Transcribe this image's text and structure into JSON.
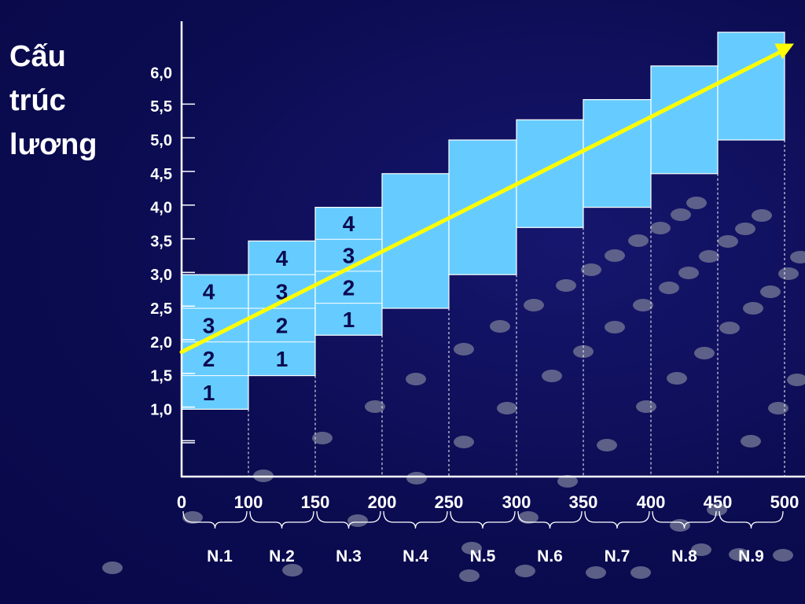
{
  "title_lines": [
    "Cấu",
    "trúc",
    "lương"
  ],
  "colors": {
    "background": "#0d0d55",
    "box_fill": "#66ccff",
    "box_stroke": "#ffffff",
    "trend_line": "#ffff00",
    "axis": "#ffffff",
    "level_text": "#0b0b50"
  },
  "chart_data": {
    "type": "bar",
    "title": "Cấu trúc lương",
    "xlabel": "",
    "ylabel": "",
    "y_tick_labels": [
      "1,0",
      "1,5",
      "2,0",
      "2,5",
      "3,0",
      "3,5",
      "4,0",
      "4,5",
      "5,0",
      "5,5",
      "6,0"
    ],
    "y_tick_values": [
      1.0,
      1.5,
      2.0,
      2.5,
      3.0,
      3.5,
      4.0,
      4.5,
      5.0,
      5.5,
      6.0
    ],
    "ylim": [
      0.0,
      6.6
    ],
    "x_tick_labels": [
      "0",
      "100",
      "150",
      "200",
      "250",
      "300",
      "350",
      "400",
      "450",
      "500"
    ],
    "x_tick_values": [
      0,
      100,
      150,
      200,
      250,
      300,
      350,
      400,
      450,
      500
    ],
    "grades": [
      {
        "name": "N.1",
        "x_start": 0,
        "x_end": 100,
        "low": 1.0,
        "high": 3.0,
        "steps": [
          "1",
          "2",
          "3",
          "4"
        ]
      },
      {
        "name": "N.2",
        "x_start": 100,
        "x_end": 150,
        "low": 1.5,
        "high": 3.5,
        "steps": [
          "1",
          "2",
          "3",
          "4"
        ]
      },
      {
        "name": "N.3",
        "x_start": 150,
        "x_end": 200,
        "low": 2.1,
        "high": 4.0,
        "steps": [
          "1",
          "2",
          "3",
          "4"
        ]
      },
      {
        "name": "N.4",
        "x_start": 200,
        "x_end": 250,
        "low": 2.5,
        "high": 4.5,
        "steps": []
      },
      {
        "name": "N.5",
        "x_start": 250,
        "x_end": 300,
        "low": 3.0,
        "high": 5.0,
        "steps": []
      },
      {
        "name": "N.6",
        "x_start": 300,
        "x_end": 350,
        "low": 3.7,
        "high": 5.3,
        "steps": []
      },
      {
        "name": "N.7",
        "x_start": 350,
        "x_end": 400,
        "low": 4.0,
        "high": 5.6,
        "steps": []
      },
      {
        "name": "N.8",
        "x_start": 400,
        "x_end": 450,
        "low": 4.5,
        "high": 6.1,
        "steps": []
      },
      {
        "name": "N.9",
        "x_start": 450,
        "x_end": 500,
        "low": 5.0,
        "high": 6.6,
        "steps": []
      }
    ],
    "trend_line": {
      "from": [
        0,
        1.85
      ],
      "to": [
        500,
        6.35
      ]
    },
    "grid": false,
    "legend": "none"
  }
}
